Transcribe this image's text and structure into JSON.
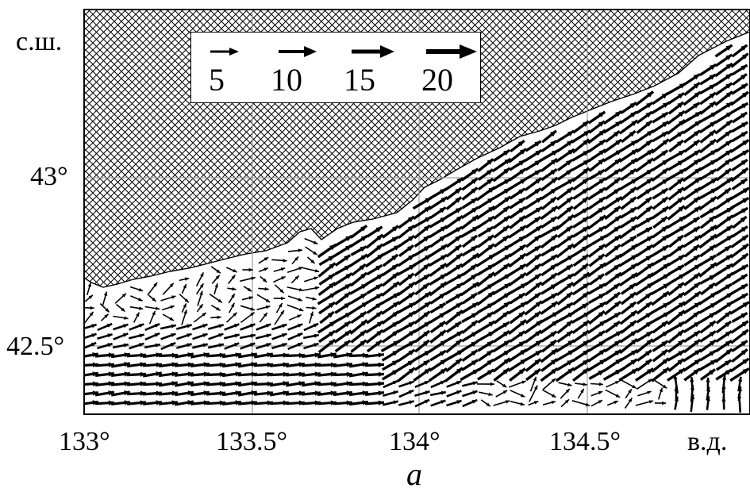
{
  "axes": {
    "lat_unit": "с.ш.",
    "lon_unit": "в.д.",
    "lat_ticks": [
      "43°",
      "42.5°"
    ],
    "lon_ticks": [
      "133°",
      "133.5°",
      "134°",
      "134.5°"
    ]
  },
  "legend": {
    "items": [
      {
        "label": "5",
        "speed": 5
      },
      {
        "label": "10",
        "speed": 10
      },
      {
        "label": "15",
        "speed": 15
      },
      {
        "label": "20",
        "speed": 20
      }
    ]
  },
  "caption": "а",
  "style": {
    "land_pattern": "cross-hatch",
    "arrow_color": "#000000",
    "grid_color": "#a0a0a0"
  }
}
